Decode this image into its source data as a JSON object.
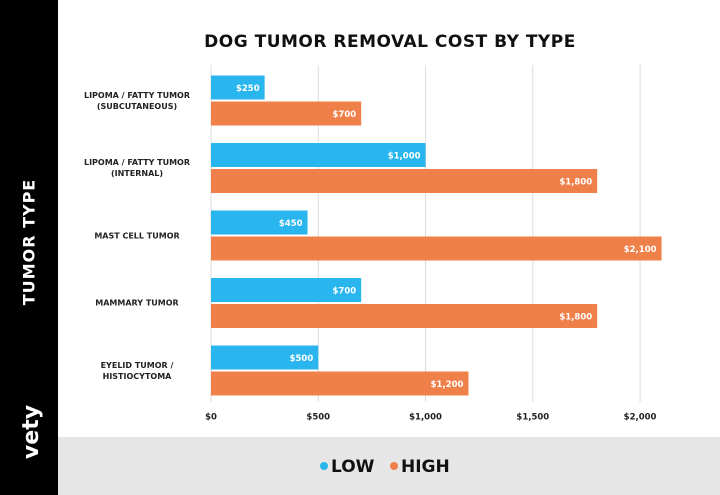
{
  "logo": "vety",
  "chart_data": {
    "type": "barh",
    "title": "DOG TUMOR REMOVAL COST BY TYPE",
    "y_label": "TUMOR TYPE",
    "categories": [
      "LIPOMA / FATTY TUMOR\n(SUBCUTANEOUS)",
      "LIPOMA / FATTY TUMOR\n(INTERNAL)",
      "MAST CELL TUMOR",
      "MAMMARY TUMOR",
      "EYELID TUMOR /\nHISTIOCYTOMA"
    ],
    "series": [
      {
        "name": "LOW",
        "color": "#29b6ee",
        "values": [
          250,
          1000,
          450,
          700,
          500
        ],
        "value_labels": [
          "$250",
          "$1,000",
          "$450",
          "$700",
          "$500"
        ]
      },
      {
        "name": "HIGH",
        "color": "#f0804a",
        "values": [
          700,
          1800,
          2100,
          1800,
          1200
        ],
        "value_labels": [
          "$700",
          "$1,800",
          "$2,100",
          "$1,800",
          "$1,200"
        ]
      }
    ],
    "xlim": [
      0,
      2200
    ],
    "xticks": [
      {
        "value": 0,
        "label": "$0"
      },
      {
        "value": 500,
        "label": "$500"
      },
      {
        "value": 1000,
        "label": "$1,000"
      },
      {
        "value": 1500,
        "label": "$1,500"
      },
      {
        "value": 2000,
        "label": "$2,000"
      }
    ],
    "grid": true,
    "legend": "bottom"
  }
}
